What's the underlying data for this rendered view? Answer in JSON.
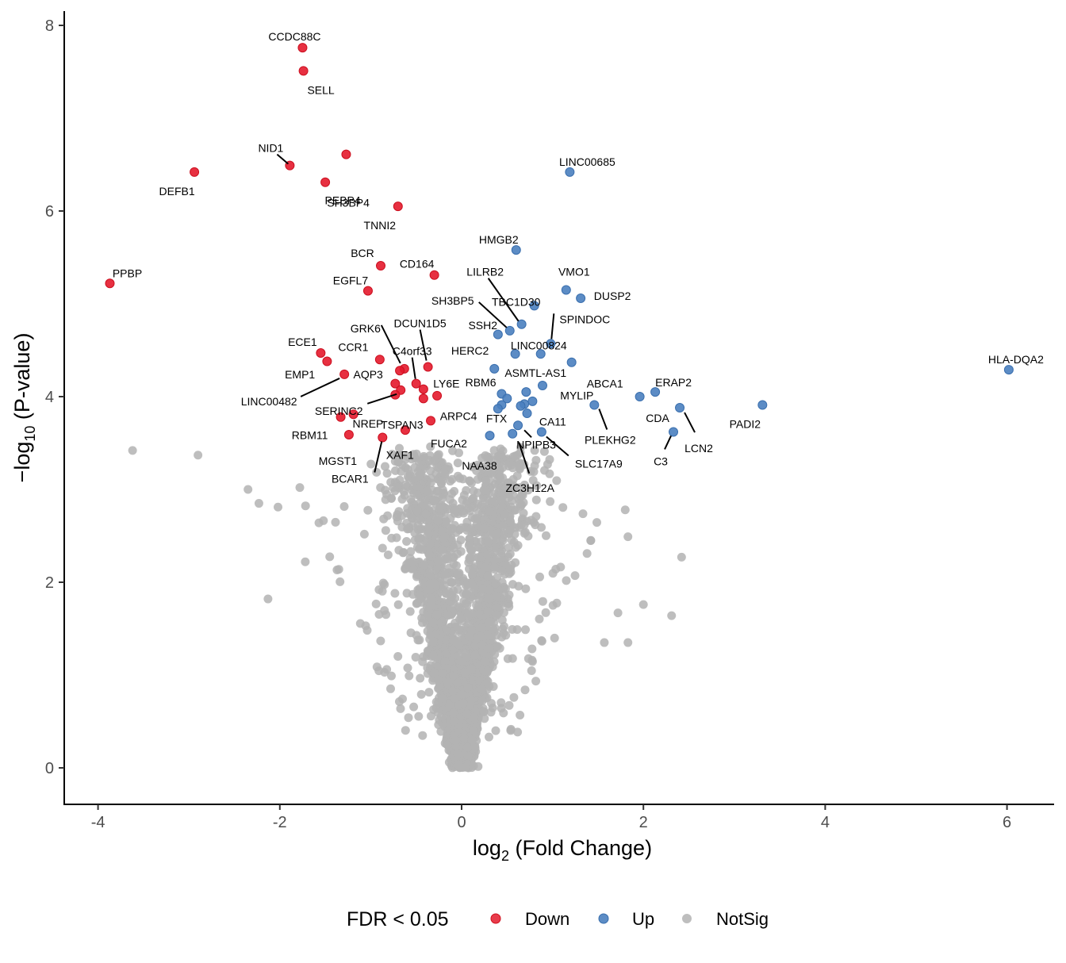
{
  "chart_data": {
    "type": "scatter",
    "title": "",
    "xlabel": "log2 (Fold Change)",
    "xlabel_main": "log",
    "xlabel_sub": "2",
    "xlabel_rest": " (Fold Change)",
    "ylabel": "-log10 (P-value)",
    "ylabel_main": "−log",
    "ylabel_sub": "10",
    "ylabel_rest": " (P-value)",
    "xlim": [
      -4.4,
      6.5
    ],
    "ylim": [
      -0.38,
      8.16
    ],
    "x_ticks": [
      -4,
      -2,
      0,
      2,
      4,
      6
    ],
    "x_tick_labels": [
      "-4",
      "-2",
      "0",
      "2",
      "4",
      "6"
    ],
    "y_ticks": [
      0,
      2,
      4,
      6,
      8
    ],
    "y_tick_labels": [
      "0",
      "2",
      "4",
      "6",
      "8"
    ],
    "grid": false,
    "colors": {
      "Down": "#e41a2c",
      "Up": "#4a7fbf",
      "NotSig": "#b3b3b3"
    },
    "legend": {
      "title": "FDR < 0.05",
      "position": "bottom",
      "entries": [
        "Down",
        "Up",
        "NotSig"
      ]
    },
    "series": [
      {
        "name": "Down",
        "points": [
          {
            "label": "CCDC88C",
            "x": -1.75,
            "y": 7.76
          },
          {
            "label": "SELL",
            "x": -1.74,
            "y": 7.51
          },
          {
            "label": "",
            "x": -1.27,
            "y": 6.61
          },
          {
            "label": "NID1",
            "x": -1.89,
            "y": 6.49
          },
          {
            "label": "DEFB1",
            "x": -2.94,
            "y": 6.42
          },
          {
            "label": "SH3BP4",
            "x": -1.5,
            "y": 6.31
          },
          {
            "label": "PEBP4",
            "x": -1.5,
            "y": 6.31
          },
          {
            "label": "TNNI2",
            "x": -0.7,
            "y": 6.05
          },
          {
            "label": "BCR",
            "x": -0.89,
            "y": 5.41
          },
          {
            "label": "PPBP",
            "x": -3.87,
            "y": 5.22
          },
          {
            "label": "CD164",
            "x": -0.3,
            "y": 5.31
          },
          {
            "label": "EGFL7",
            "x": -1.03,
            "y": 5.14
          },
          {
            "label": "ECE1",
            "x": -1.55,
            "y": 4.47
          },
          {
            "label": "CCR1",
            "x": -1.48,
            "y": 4.38
          },
          {
            "label": "",
            "x": -0.9,
            "y": 4.4
          },
          {
            "label": "GRK6",
            "x": -0.63,
            "y": 4.3
          },
          {
            "label": "",
            "x": -0.68,
            "y": 4.28
          },
          {
            "label": "DCUN1D5",
            "x": -0.37,
            "y": 4.32
          },
          {
            "label": "EMP1",
            "x": -1.29,
            "y": 4.24
          },
          {
            "label": "AQP3",
            "x": -1.29,
            "y": 4.24
          },
          {
            "label": "LINC00482",
            "x": -1.29,
            "y": 4.24
          },
          {
            "label": "C4orf33",
            "x": -0.5,
            "y": 4.14
          },
          {
            "label": "",
            "x": -0.73,
            "y": 4.14
          },
          {
            "label": "LY6E",
            "x": -0.42,
            "y": 4.08
          },
          {
            "label": "SERINC2",
            "x": -0.67,
            "y": 4.07
          },
          {
            "label": "",
            "x": -0.73,
            "y": 4.02
          },
          {
            "label": "RBM6",
            "x": -0.27,
            "y": 4.01
          },
          {
            "label": "TSPAN3",
            "x": -0.42,
            "y": 3.98
          },
          {
            "label": "ARPC4",
            "x": -0.34,
            "y": 3.74
          },
          {
            "label": "RBM11",
            "x": -1.33,
            "y": 3.78
          },
          {
            "label": "",
            "x": -1.19,
            "y": 3.81
          },
          {
            "label": "NREP",
            "x": -0.62,
            "y": 3.64
          },
          {
            "label": "FUCA2",
            "x": -0.62,
            "y": 3.64
          },
          {
            "label": "MGST1",
            "x": -1.24,
            "y": 3.59
          },
          {
            "label": "XAF1",
            "x": -0.87,
            "y": 3.56
          },
          {
            "label": "BCAR1",
            "x": -0.87,
            "y": 3.56
          }
        ]
      },
      {
        "name": "Up",
        "points": [
          {
            "label": "LINC00685",
            "x": 1.19,
            "y": 6.42
          },
          {
            "label": "HMGB2",
            "x": 0.6,
            "y": 5.58
          },
          {
            "label": "VMO1",
            "x": 1.15,
            "y": 5.15
          },
          {
            "label": "DUSP2",
            "x": 1.31,
            "y": 5.06
          },
          {
            "label": "TBC1D30",
            "x": 0.8,
            "y": 4.98
          },
          {
            "label": "LILRB2",
            "x": 0.66,
            "y": 4.78
          },
          {
            "label": "SH3BP5",
            "x": 0.53,
            "y": 4.71
          },
          {
            "label": "SSH2",
            "x": 0.53,
            "y": 4.71
          },
          {
            "label": "",
            "x": 0.4,
            "y": 4.67
          },
          {
            "label": "SPINDOC",
            "x": 0.98,
            "y": 4.57
          },
          {
            "label": "LINC00824",
            "x": 0.98,
            "y": 4.57
          },
          {
            "label": "HERC2",
            "x": 0.59,
            "y": 4.46
          },
          {
            "label": "",
            "x": 0.87,
            "y": 4.46
          },
          {
            "label": "ABCA1",
            "x": 1.21,
            "y": 4.37
          },
          {
            "label": "ASMTL-AS1",
            "x": 0.36,
            "y": 4.3
          },
          {
            "label": "HLA-DQA2",
            "x": 6.02,
            "y": 4.29
          },
          {
            "label": "",
            "x": 0.89,
            "y": 4.12
          },
          {
            "label": "",
            "x": 0.71,
            "y": 4.05
          },
          {
            "label": "",
            "x": 0.44,
            "y": 4.03
          },
          {
            "label": "",
            "x": 0.5,
            "y": 3.98
          },
          {
            "label": "ERAP2",
            "x": 2.13,
            "y": 4.05
          },
          {
            "label": "",
            "x": 1.96,
            "y": 4.0
          },
          {
            "label": "",
            "x": 0.78,
            "y": 3.95
          },
          {
            "label": "",
            "x": 0.69,
            "y": 3.92
          },
          {
            "label": "",
            "x": 0.44,
            "y": 3.91
          },
          {
            "label": "MYLIP",
            "x": 1.46,
            "y": 3.91
          },
          {
            "label": "PLEKHG2",
            "x": 1.46,
            "y": 3.91
          },
          {
            "label": "",
            "x": 0.65,
            "y": 3.9
          },
          {
            "label": "",
            "x": 0.4,
            "y": 3.87
          },
          {
            "label": "PADI2",
            "x": 3.31,
            "y": 3.91
          },
          {
            "label": "LCN2",
            "x": 2.4,
            "y": 3.88
          },
          {
            "label": "CDA",
            "x": 2.4,
            "y": 3.88
          },
          {
            "label": "",
            "x": 0.72,
            "y": 3.82
          },
          {
            "label": "FTX",
            "x": 0.62,
            "y": 3.69
          },
          {
            "label": "NPIPB3",
            "x": 0.62,
            "y": 3.69
          },
          {
            "label": "CA11",
            "x": 0.88,
            "y": 3.62
          },
          {
            "label": "SLC17A9",
            "x": 0.88,
            "y": 3.62
          },
          {
            "label": "C3",
            "x": 2.33,
            "y": 3.62
          },
          {
            "label": "NAA38",
            "x": 0.31,
            "y": 3.58
          },
          {
            "label": "ZC3H12A",
            "x": 0.56,
            "y": 3.6
          }
        ]
      }
    ],
    "gray_points_note": "NotSig series: several thousand genes forming a V-shaped cloud centered on x=0, y between 0 and ~3.5",
    "notsig_extremes": [
      {
        "x": -3.62,
        "y": 3.42
      },
      {
        "x": -2.9,
        "y": 3.37
      },
      {
        "x": -2.35,
        "y": 3.0
      },
      {
        "x": -2.23,
        "y": 2.85
      },
      {
        "x": -2.02,
        "y": 2.81
      },
      {
        "x": -1.78,
        "y": 3.02
      },
      {
        "x": -1.57,
        "y": 2.64
      },
      {
        "x": -1.72,
        "y": 2.22
      },
      {
        "x": -2.13,
        "y": 1.82
      },
      {
        "x": 2.42,
        "y": 2.27
      },
      {
        "x": 1.83,
        "y": 2.49
      },
      {
        "x": 2.31,
        "y": 1.64
      },
      {
        "x": 2.0,
        "y": 1.76
      },
      {
        "x": 1.72,
        "y": 1.67
      },
      {
        "x": 1.83,
        "y": 1.35
      },
      {
        "x": 1.57,
        "y": 1.35
      },
      {
        "x": 1.38,
        "y": 2.31
      },
      {
        "x": 1.8,
        "y": 2.78
      }
    ]
  }
}
